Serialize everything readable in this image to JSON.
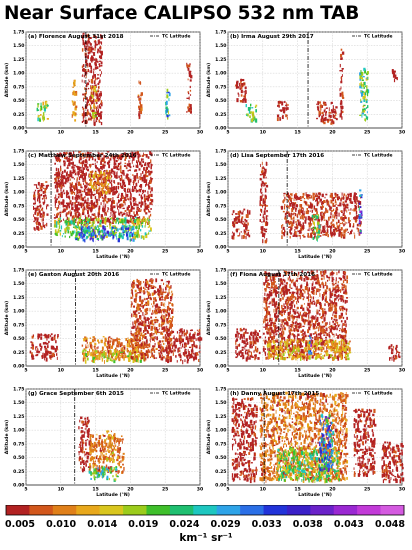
{
  "title": "Near Surface CALIPSO 532 nm TAB",
  "colorbar": {
    "ticks": [
      "0.005",
      "0.010",
      "0.014",
      "0.019",
      "0.024",
      "0.029",
      "0.033",
      "0.038",
      "0.043",
      "0.048"
    ],
    "unit": "km⁻¹ sr⁻¹",
    "colors": [
      "#b22222",
      "#d2571c",
      "#e0801a",
      "#e8a81c",
      "#d9c61e",
      "#9ccc1c",
      "#3fbf2b",
      "#1fbf70",
      "#1ec7c0",
      "#2ea4e8",
      "#2b6fe6",
      "#2233d9",
      "#3a20c8",
      "#6a22c9",
      "#9a28d2",
      "#c23ad8",
      "#d45ae0"
    ]
  },
  "chart_data": [
    {
      "type": "scatter",
      "panel_label": "(a)",
      "title": "Florence August 31st 2018",
      "xlabel": "",
      "ylabel": "Altitude (km)",
      "xlim": [
        5,
        30
      ],
      "ylim": [
        0,
        1.75
      ],
      "xticks": [
        5,
        10,
        15,
        20,
        25,
        30
      ],
      "yticks": [
        0.25,
        0.5,
        0.75,
        1.0,
        1.25,
        1.5,
        1.75
      ],
      "tc_latitude": 13.6,
      "legend": "TC Latitude",
      "regions": [
        {
          "x": [
            11.5,
            12.2
          ],
          "y": [
            0.15,
            0.9
          ],
          "level": 0.012
        },
        {
          "x": [
            13.0,
            15.8
          ],
          "y": [
            0.1,
            1.75
          ],
          "level": 0.006
        },
        {
          "x": [
            14.3,
            15.0
          ],
          "y": [
            0.2,
            0.8
          ],
          "level": 0.016
        },
        {
          "x": [
            21.0,
            21.5
          ],
          "y": [
            0.15,
            1.0
          ],
          "level": 0.008
        },
        {
          "x": [
            6.5,
            8.0
          ],
          "y": [
            0.15,
            0.5
          ],
          "level": 0.02
        },
        {
          "x": [
            25.0,
            25.5
          ],
          "y": [
            0.2,
            0.8
          ],
          "level": 0.025
        },
        {
          "x": [
            28.0,
            28.6
          ],
          "y": [
            0.3,
            1.2
          ],
          "level": 0.006
        }
      ]
    },
    {
      "type": "scatter",
      "panel_label": "(b)",
      "title": "Irma August 29th 2017",
      "xlabel": "",
      "ylabel": "Altitude (km)",
      "xlim": [
        5,
        30
      ],
      "ylim": [
        0,
        1.75
      ],
      "xticks": [
        5,
        10,
        15,
        20,
        25,
        30
      ],
      "yticks": [
        0.25,
        0.5,
        0.75,
        1.0,
        1.25,
        1.5,
        1.75
      ],
      "tc_latitude": 16.5,
      "legend": "TC Latitude",
      "regions": [
        {
          "x": [
            6.0,
            7.5
          ],
          "y": [
            0.5,
            0.9
          ],
          "level": 0.006
        },
        {
          "x": [
            7.5,
            9.0
          ],
          "y": [
            0.15,
            0.45
          ],
          "level": 0.02
        },
        {
          "x": [
            12.0,
            13.5
          ],
          "y": [
            0.15,
            0.5
          ],
          "level": 0.006
        },
        {
          "x": [
            17.5,
            20.5
          ],
          "y": [
            0.1,
            0.5
          ],
          "level": 0.007
        },
        {
          "x": [
            21.0,
            21.4
          ],
          "y": [
            0.15,
            1.5
          ],
          "level": 0.006
        },
        {
          "x": [
            23.8,
            25.0
          ],
          "y": [
            0.15,
            1.1
          ],
          "level": 0.022
        },
        {
          "x": [
            28.5,
            29.3
          ],
          "y": [
            0.9,
            1.1
          ],
          "level": 0.006
        }
      ]
    },
    {
      "type": "scatter",
      "panel_label": "(c)",
      "title": "Matthew September 24th 2016",
      "xlabel": "Latitude (°N)",
      "ylabel": "Altitude (km)",
      "xlim": [
        5,
        30
      ],
      "ylim": [
        0,
        1.75
      ],
      "xticks": [
        5,
        10,
        15,
        20,
        25,
        30
      ],
      "yticks": [
        0.25,
        0.5,
        0.75,
        1.0,
        1.25,
        1.5,
        1.75
      ],
      "tc_latitude": 8.6,
      "legend": "TC Latitude",
      "regions": [
        {
          "x": [
            6.0,
            8.0
          ],
          "y": [
            0.35,
            1.2
          ],
          "level": 0.006
        },
        {
          "x": [
            9.0,
            23.0
          ],
          "y": [
            0.45,
            1.75
          ],
          "level": 0.006
        },
        {
          "x": [
            9.0,
            23.0
          ],
          "y": [
            0.2,
            0.55
          ],
          "level": 0.02
        },
        {
          "x": [
            12.0,
            20.5
          ],
          "y": [
            0.15,
            0.4
          ],
          "level": 0.03
        },
        {
          "x": [
            14.0,
            17.0
          ],
          "y": [
            1.0,
            1.4
          ],
          "level": 0.012
        }
      ]
    },
    {
      "type": "scatter",
      "panel_label": "(d)",
      "title": "Lisa September 17th 2016",
      "xlabel": "Latitude (°N)",
      "ylabel": "Altitude (km)",
      "xlim": [
        5,
        30
      ],
      "ylim": [
        0,
        1.75
      ],
      "xticks": [
        5,
        10,
        15,
        20,
        25,
        30
      ],
      "yticks": [
        0.25,
        0.5,
        0.75,
        1.0,
        1.25,
        1.5,
        1.75
      ],
      "tc_latitude": 13.5,
      "legend": "TC Latitude",
      "regions": [
        {
          "x": [
            5.5,
            8.0
          ],
          "y": [
            0.2,
            0.7
          ],
          "level": 0.006
        },
        {
          "x": [
            9.5,
            10.5
          ],
          "y": [
            0.1,
            1.6
          ],
          "level": 0.006
        },
        {
          "x": [
            12.5,
            24.0
          ],
          "y": [
            0.2,
            1.0
          ],
          "level": 0.007
        },
        {
          "x": [
            17.0,
            18.0
          ],
          "y": [
            0.15,
            0.6
          ],
          "level": 0.02
        },
        {
          "x": [
            23.7,
            24.1
          ],
          "y": [
            0.3,
            1.1
          ],
          "level": 0.035
        }
      ]
    },
    {
      "type": "scatter",
      "panel_label": "(e)",
      "title": "Gaston August 20th 2016",
      "xlabel": "Latitude (°N)",
      "ylabel": "Altitude (km)",
      "xlim": [
        5,
        30
      ],
      "ylim": [
        0,
        1.75
      ],
      "xticks": [
        5,
        10,
        15,
        20,
        25,
        30
      ],
      "yticks": [
        0.25,
        0.5,
        0.75,
        1.0,
        1.25,
        1.5,
        1.75
      ],
      "tc_latitude": 12.1,
      "legend": "TC Latitude",
      "regions": [
        {
          "x": [
            13.0,
            22.0
          ],
          "y": [
            0.15,
            0.55
          ],
          "level": 0.01
        },
        {
          "x": [
            13.0,
            22.0
          ],
          "y": [
            0.1,
            0.3
          ],
          "level": 0.016
        },
        {
          "x": [
            20.0,
            26.0
          ],
          "y": [
            0.15,
            1.6
          ],
          "level": 0.008
        },
        {
          "x": [
            25.0,
            30.0
          ],
          "y": [
            0.1,
            0.7
          ],
          "level": 0.006
        },
        {
          "x": [
            5.5,
            9.5
          ],
          "y": [
            0.15,
            0.6
          ],
          "level": 0.006
        }
      ]
    },
    {
      "type": "scatter",
      "panel_label": "(f)",
      "title": "Fiona August 17th 2016",
      "xlabel": "Latitude (°N)",
      "ylabel": "Altitude (km)",
      "xlim": [
        5,
        30
      ],
      "ylim": [
        0,
        1.75
      ],
      "xticks": [
        5,
        10,
        15,
        20,
        25,
        30
      ],
      "yticks": [
        0.25,
        0.5,
        0.75,
        1.0,
        1.25,
        1.5,
        1.75
      ],
      "tc_latitude": 12.3,
      "legend": "TC Latitude",
      "regions": [
        {
          "x": [
            6.0,
            9.5
          ],
          "y": [
            0.15,
            0.7
          ],
          "level": 0.006
        },
        {
          "x": [
            10.0,
            22.0
          ],
          "y": [
            0.15,
            1.75
          ],
          "level": 0.007
        },
        {
          "x": [
            10.5,
            22.5
          ],
          "y": [
            0.15,
            0.5
          ],
          "level": 0.014
        },
        {
          "x": [
            16.5,
            17.0
          ],
          "y": [
            0.2,
            0.6
          ],
          "level": 0.033
        },
        {
          "x": [
            28.0,
            29.5
          ],
          "y": [
            0.1,
            0.4
          ],
          "level": 0.006
        }
      ]
    },
    {
      "type": "scatter",
      "panel_label": "(g)",
      "title": "Grace September 6th 2015",
      "xlabel": "Latitude (°N)",
      "ylabel": "Altitude (km)",
      "xlim": [
        5,
        30
      ],
      "ylim": [
        0,
        1.75
      ],
      "xticks": [
        5,
        10,
        15,
        20,
        25,
        30
      ],
      "yticks": [
        0.25,
        0.5,
        0.75,
        1.0,
        1.25,
        1.5,
        1.75
      ],
      "tc_latitude": 12.0,
      "legend": "TC Latitude",
      "regions": [
        {
          "x": [
            12.5,
            14.0
          ],
          "y": [
            0.3,
            1.25
          ],
          "level": 0.006
        },
        {
          "x": [
            14.0,
            19.0
          ],
          "y": [
            0.25,
            0.95
          ],
          "level": 0.01
        },
        {
          "x": [
            14.0,
            18.0
          ],
          "y": [
            0.1,
            0.35
          ],
          "level": 0.022
        },
        {
          "x": [
            16.5,
            17.5
          ],
          "y": [
            0.45,
            1.0
          ],
          "level": 0.014
        }
      ]
    },
    {
      "type": "scatter",
      "panel_label": "(h)",
      "title": "Danny August 17th 2015",
      "xlabel": "Latitude (°N)",
      "ylabel": "Altitude (km)",
      "xlim": [
        5,
        30
      ],
      "ylim": [
        0,
        1.75
      ],
      "xticks": [
        5,
        10,
        15,
        20,
        25,
        30
      ],
      "yticks": [
        0.25,
        0.5,
        0.75,
        1.0,
        1.25,
        1.5,
        1.75
      ],
      "tc_latitude": 10.2,
      "legend": "TC Latitude",
      "regions": [
        {
          "x": [
            5.5,
            9.0
          ],
          "y": [
            0.1,
            1.6
          ],
          "level": 0.006
        },
        {
          "x": [
            9.5,
            22.0
          ],
          "y": [
            0.1,
            1.7
          ],
          "level": 0.01
        },
        {
          "x": [
            12.0,
            21.0
          ],
          "y": [
            0.1,
            0.7
          ],
          "level": 0.02
        },
        {
          "x": [
            18.0,
            20.0
          ],
          "y": [
            0.3,
            1.3
          ],
          "level": 0.03
        },
        {
          "x": [
            23.0,
            26.0
          ],
          "y": [
            0.2,
            1.4
          ],
          "level": 0.006
        },
        {
          "x": [
            27.0,
            30.0
          ],
          "y": [
            0.1,
            0.8
          ],
          "level": 0.006
        }
      ]
    }
  ]
}
